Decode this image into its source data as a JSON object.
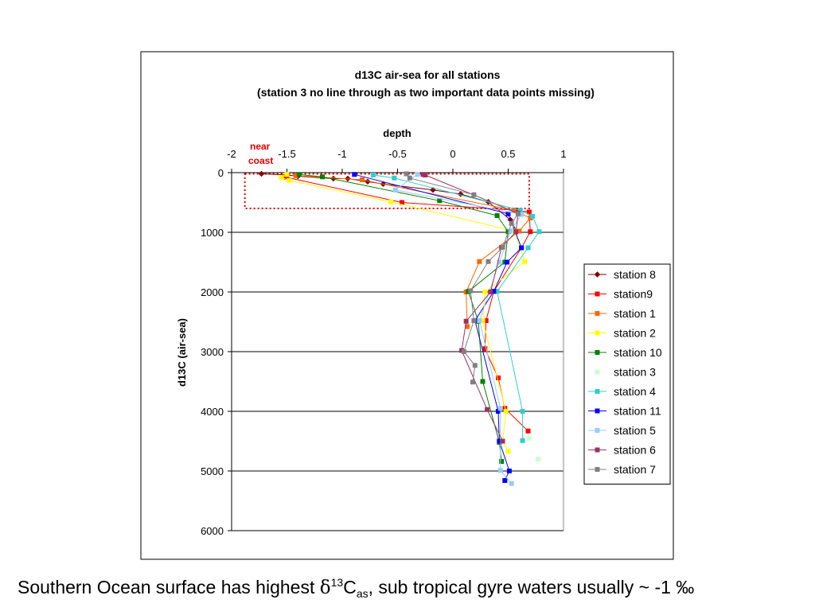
{
  "chart_data": {
    "type": "scatter",
    "title": "d13C air-sea for all stations",
    "subtitle": "(station 3 no line through as two important data points missing)",
    "xlabel": "depth",
    "ylabel": "d13C (air-sea)",
    "xlim": [
      -2,
      1
    ],
    "ylim": [
      0,
      6000
    ],
    "y_reversed": true,
    "x_axis_position": "top",
    "x_ticks": [
      -2,
      -1.5,
      -1,
      -0.5,
      0,
      0.5,
      1
    ],
    "x_tick_labels": [
      "-2",
      "-1.5",
      "-1",
      "-0.5",
      "0",
      "0.5",
      "1"
    ],
    "y_ticks": [
      0,
      1000,
      2000,
      3000,
      4000,
      5000,
      6000
    ],
    "y_tick_labels": [
      "0",
      "1000",
      "2000",
      "3000",
      "4000",
      "5000",
      "6000"
    ],
    "horizontal_gridlines": true,
    "legend_position": "right",
    "annotation": {
      "text_line1": "near",
      "text_line2": "coast",
      "color": "#e00000",
      "box_x": [
        -1.88,
        0.69
      ],
      "box_y": [
        20,
        600
      ]
    },
    "series": [
      {
        "name": "station 8",
        "color": "#800000",
        "marker": "diamond",
        "line": true,
        "x": [
          -1.73,
          -1.5,
          -1.4,
          -1.08,
          -0.95,
          -0.77,
          -0.63,
          -0.18,
          0.07,
          0.32,
          0.52,
          0.58
        ],
        "y": [
          20,
          40,
          60,
          100,
          100,
          150,
          190,
          290,
          360,
          490,
          790,
          990
        ]
      },
      {
        "name": "station9",
        "color": "#ff0000",
        "marker": "square",
        "line": true,
        "x": [
          -1.52,
          -1.5,
          -0.46,
          0.57,
          0.69,
          0.7,
          0.62,
          0.37,
          0.3,
          0.29,
          0.41,
          0.47,
          0.68
        ],
        "y": [
          70,
          80,
          500,
          630,
          660,
          990,
          1260,
          1990,
          2480,
          2950,
          3440,
          3950,
          4330
        ]
      },
      {
        "name": "station 1",
        "color": "#ff6600",
        "marker": "square",
        "line": true,
        "x": [
          -1.42,
          -0.82,
          0.55,
          0.7,
          0.6,
          0.24,
          0.12,
          0.13
        ],
        "y": [
          50,
          120,
          630,
          760,
          980,
          1490,
          2000,
          2580
        ]
      },
      {
        "name": "station 2",
        "color": "#ffff00",
        "marker": "square",
        "line": true,
        "x": [
          -1.5,
          -1.55,
          -1.48,
          -0.56,
          0.56,
          0.65,
          0.29,
          0.27,
          0.48,
          0.45,
          0.5
        ],
        "y": [
          30,
          80,
          130,
          490,
          980,
          1490,
          2000,
          2480,
          4000,
          4500,
          4670
        ]
      },
      {
        "name": "station 10",
        "color": "#008000",
        "marker": "square",
        "line": true,
        "x": [
          -1.39,
          -1.18,
          -0.12,
          0.4,
          0.5,
          0.47,
          0.14,
          0.23,
          0.27,
          0.42,
          0.44
        ],
        "y": [
          30,
          70,
          470,
          720,
          990,
          1500,
          1990,
          2490,
          3500,
          4520,
          4840
        ]
      },
      {
        "name": "station 3",
        "color": "#ccffcc",
        "marker": "square",
        "line": false,
        "x": [
          0.69,
          0.77
        ],
        "y": [
          4450,
          4800
        ]
      },
      {
        "name": "station 4",
        "color": "#33cccc",
        "marker": "square",
        "line": true,
        "x": [
          -0.72,
          -0.53,
          0.61,
          0.72,
          0.78,
          0.68,
          0.4,
          0.63,
          0.63
        ],
        "y": [
          40,
          90,
          630,
          730,
          990,
          1260,
          1990,
          4000,
          4490
        ]
      },
      {
        "name": "station 11",
        "color": "#0000ff",
        "marker": "square",
        "line": true,
        "x": [
          -0.89,
          0.5,
          0.62,
          0.49,
          0.37,
          0.2,
          0.41,
          0.42,
          0.51,
          0.47
        ],
        "y": [
          30,
          690,
          1260,
          1500,
          1990,
          2480,
          4000,
          4500,
          5000,
          5160
        ]
      },
      {
        "name": "station 5",
        "color": "#99ccff",
        "marker": "square",
        "line": true,
        "x": [
          -0.32,
          -0.52,
          0.62,
          0.52,
          0.42,
          0.24,
          0.43,
          0.43,
          0.53
        ],
        "y": [
          30,
          290,
          700,
          980,
          1500,
          2480,
          3950,
          4990,
          5210
        ]
      },
      {
        "name": "station 6",
        "color": "#993366",
        "marker": "square",
        "line": true,
        "x": [
          -0.27,
          -0.25,
          0.59,
          0.57,
          0.44,
          0.34,
          0.12,
          0.08,
          0.31,
          0.45
        ],
        "y": [
          30,
          40,
          680,
          990,
          1250,
          2000,
          2490,
          2980,
          3970,
          4500
        ]
      },
      {
        "name": "station 7",
        "color": "#808080",
        "marker": "square",
        "line": true,
        "x": [
          -0.42,
          -0.39,
          0.19,
          0.59,
          0.53,
          0.45,
          0.32,
          0.16,
          0.19,
          0.1,
          0.2,
          0.18
        ],
        "y": [
          20,
          90,
          370,
          690,
          850,
          1250,
          1490,
          1980,
          2480,
          3000,
          3230,
          3510
        ]
      }
    ]
  },
  "caption": {
    "before": "Southern Ocean surface has highest ",
    "delta": "δ",
    "sup": "13",
    "c": "C",
    "sub": "as",
    "after": ", sub tropical gyre waters usually ~ -1 ‰"
  }
}
